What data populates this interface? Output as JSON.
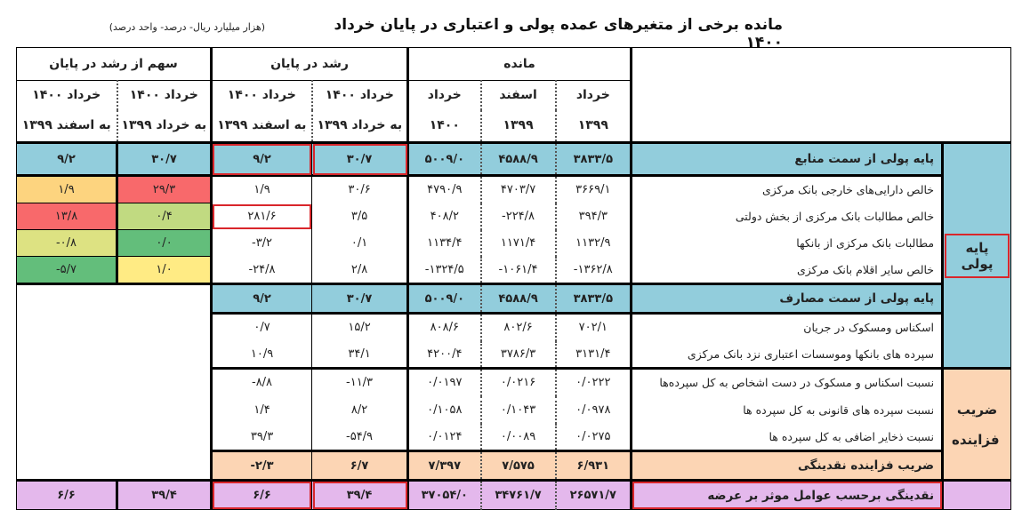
{
  "title": "مانده برخی از متغیرهای عمده پولی و اعتباری در پایان خرداد ۱۴۰۰",
  "units": "(هزار میلیارد ریال- درصد- واحد درصد)",
  "header": {
    "balance": "مانده",
    "growth": "رشد در پایان",
    "share": "سهم از رشد در پایان",
    "cols_row1": [
      "خرداد",
      "اسفند",
      "خرداد",
      "خرداد ۱۴۰۰",
      "خرداد ۱۴۰۰",
      "خرداد ۱۴۰۰",
      "خرداد ۱۴۰۰"
    ],
    "cols_row2": [
      "۱۳۹۹",
      "۱۳۹۹",
      "۱۴۰۰",
      "به خرداد ۱۳۹۹",
      "به اسفند ۱۳۹۹",
      "به خرداد ۱۳۹۹",
      "به اسفند ۱۳۹۹"
    ]
  },
  "groups": {
    "base_money": "پایه پولی",
    "multiplier": "ضریب فزاینده"
  },
  "colors": {
    "blue": "#92cddc",
    "orange": "#fcd5b4",
    "purple": "#e4b8ec",
    "highlight": "#d9262b"
  },
  "rows": [
    {
      "label": "پایه پولی از سمت منابع",
      "kind": "blue",
      "values": [
        "۳۸۳۳/۵",
        "۴۵۸۸/۹",
        "۵۰۰۹/۰",
        "۳۰/۷",
        "۹/۲"
      ],
      "shares": [
        "۳۰/۷",
        "۹/۲"
      ]
    },
    {
      "label": "خالص دارایی‌های خارجی بانک مرکزی",
      "kind": "item",
      "values": [
        "۳۶۶۹/۱",
        "۴۷۰۳/۷",
        "۴۷۹۰/۹",
        "۳۰/۶",
        "۱/۹"
      ],
      "shares": [
        "۲۹/۳",
        "۱/۹"
      ],
      "share_colors": [
        "#f8696b",
        "#fdd47f"
      ]
    },
    {
      "label": "خالص مطالبات بانک مرکزی از بخش دولتی",
      "kind": "item",
      "values": [
        "۳۹۴/۳",
        "-۲۲۴/۸",
        "۴۰۸/۲",
        "۳/۵",
        "۲۸۱/۶"
      ],
      "shares": [
        "۰/۴",
        "۱۳/۸"
      ],
      "share_colors": [
        "#c1da81",
        "#f8696b"
      ]
    },
    {
      "label": "مطالبات بانک مرکزی از بانکها",
      "kind": "item",
      "values": [
        "۱۱۳۲/۹",
        "۱۱۷۱/۴",
        "۱۱۳۴/۴",
        "۰/۱",
        "-۳/۲"
      ],
      "shares": [
        "۰/۰",
        "-۰/۸"
      ],
      "share_colors": [
        "#63be7b",
        "#dde282"
      ]
    },
    {
      "label": "خالص سایر اقلام بانک مرکزی",
      "kind": "item",
      "values": [
        "-۱۳۶۲/۸",
        "-۱۰۶۱/۴",
        "-۱۳۲۴/۵",
        "۲/۸",
        "-۲۴/۸"
      ],
      "shares": [
        "۱/۰",
        "-۵/۷"
      ],
      "share_colors": [
        "#ffeb84",
        "#63be7b"
      ]
    },
    {
      "label": "پایه پولی از سمت مصارف",
      "kind": "blue",
      "values": [
        "۳۸۳۳/۵",
        "۴۵۸۸/۹",
        "۵۰۰۹/۰",
        "۳۰/۷",
        "۹/۲"
      ]
    },
    {
      "label": "اسکناس ومسکوک در جریان",
      "kind": "item",
      "values": [
        "۷۰۲/۱",
        "۸۰۲/۶",
        "۸۰۸/۶",
        "۱۵/۲",
        "۰/۷"
      ]
    },
    {
      "label": "سپرده های بانکها وموسسات اعتباری نزد بانک مرکزی",
      "kind": "item",
      "values": [
        "۳۱۳۱/۴",
        "۳۷۸۶/۳",
        "۴۲۰۰/۴",
        "۳۴/۱",
        "۱۰/۹"
      ]
    },
    {
      "label": "نسبت اسکناس و مسکوک در دست اشخاص به کل سپرده‌ها",
      "kind": "item",
      "values": [
        "۰/۰۲۲۲",
        "۰/۰۲۱۶",
        "۰/۰۱۹۷",
        "-۱۱/۳",
        "-۸/۸"
      ]
    },
    {
      "label": "نسبت سپرده های قانونی به کل سپرده ها",
      "kind": "item",
      "values": [
        "۰/۰۹۷۸",
        "۰/۱۰۴۳",
        "۰/۱۰۵۸",
        "۸/۲",
        "۱/۴"
      ]
    },
    {
      "label": "نسبت ذخایر اضافی به کل سپرده ها",
      "kind": "item",
      "values": [
        "۰/۰۲۷۵",
        "۰/۰۰۸۹",
        "۰/۰۱۲۴",
        "-۵۴/۹",
        "۳۹/۳"
      ]
    },
    {
      "label": "ضریب فزاینده نقدینگی",
      "kind": "orange",
      "values": [
        "۶/۹۳۱",
        "۷/۵۷۵",
        "۷/۳۹۷",
        "۶/۷",
        "-۲/۳"
      ]
    },
    {
      "label": "نقدینگی برحسب عوامل موثر بر عرضه",
      "kind": "purple",
      "values": [
        "۲۶۵۷۱/۷",
        "۳۴۷۶۱/۷",
        "۳۷۰۵۴/۰",
        "۳۹/۴",
        "۶/۶"
      ],
      "shares": [
        "۳۹/۴",
        "۶/۶"
      ]
    }
  ]
}
